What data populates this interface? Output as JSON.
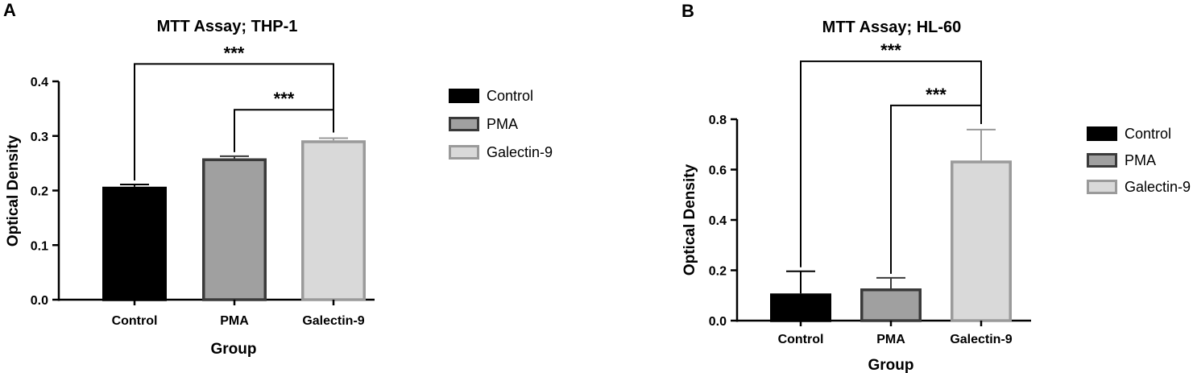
{
  "chart_data": [
    {
      "type": "bar",
      "panel": "A",
      "title": "MTT Assay; THP-1",
      "xlabel": "Group",
      "ylabel": "Optical Density",
      "categories": [
        "Control",
        "PMA",
        "Galectin-9"
      ],
      "values": [
        0.207,
        0.259,
        0.292
      ],
      "errors": [
        0.004,
        0.004,
        0.004
      ],
      "ylim": [
        0,
        0.4
      ],
      "yticks": [
        "0.0",
        "0.1",
        "0.2",
        "0.3",
        "0.4"
      ],
      "ytick_values": [
        0,
        0.1,
        0.2,
        0.3,
        0.4
      ],
      "legend": [
        "Control",
        "PMA",
        "Galectin-9"
      ],
      "legend_position": "right",
      "grid": false,
      "colors": {
        "fill": [
          "#000000",
          "#a0a0a0",
          "#d9d9d9"
        ],
        "stroke": [
          "#000000",
          "#3a3a3a",
          "#9a9a9a"
        ]
      },
      "significance": [
        {
          "from": 0,
          "to": 2,
          "label": "***",
          "level": 0.432
        },
        {
          "from": 1,
          "to": 2,
          "label": "***",
          "level": 0.348
        }
      ]
    },
    {
      "type": "bar",
      "panel": "B",
      "title": "MTT Assay; HL-60",
      "xlabel": "Group",
      "ylabel": "Optical Density",
      "categories": [
        "Control",
        "PMA",
        "Galectin-9"
      ],
      "values": [
        0.108,
        0.128,
        0.636
      ],
      "errors": [
        0.088,
        0.042,
        0.123
      ],
      "ylim": [
        0,
        0.8
      ],
      "yticks": [
        "0.0",
        "0.2",
        "0.4",
        "0.6",
        "0.8"
      ],
      "ytick_values": [
        0,
        0.2,
        0.4,
        0.6,
        0.8
      ],
      "legend": [
        "Control",
        "PMA",
        "Galectin-9"
      ],
      "legend_position": "right",
      "grid": false,
      "colors": {
        "fill": [
          "#000000",
          "#a0a0a0",
          "#d9d9d9"
        ],
        "stroke": [
          "#000000",
          "#3a3a3a",
          "#9a9a9a"
        ]
      },
      "significance": [
        {
          "from": 0,
          "to": 2,
          "label": "***",
          "level": 1.03
        },
        {
          "from": 1,
          "to": 2,
          "label": "***",
          "level": 0.855
        }
      ]
    }
  ]
}
